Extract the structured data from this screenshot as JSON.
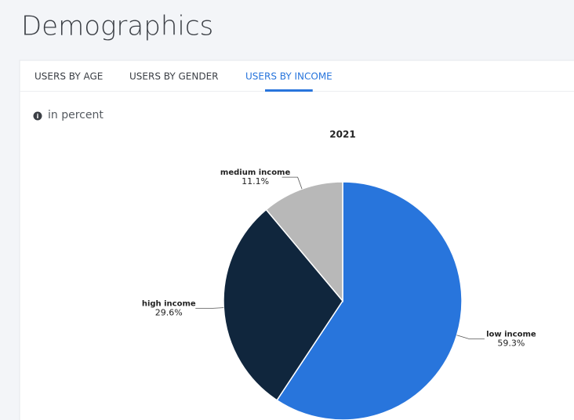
{
  "header": {
    "title": "Demographics"
  },
  "tabs": {
    "items": [
      "USERS BY AGE",
      "USERS BY GENDER",
      "USERS BY INCOME"
    ],
    "active": 2
  },
  "note": "in percent",
  "chart_data": {
    "type": "pie",
    "title": "2021",
    "categories": [
      "low income",
      "high income",
      "medium income"
    ],
    "values": [
      59.3,
      29.6,
      11.1
    ],
    "value_labels": [
      "59.3%",
      "29.6%",
      "11.1%"
    ],
    "colors": [
      "#2875dc",
      "#10263d",
      "#b8b8b8"
    ]
  }
}
